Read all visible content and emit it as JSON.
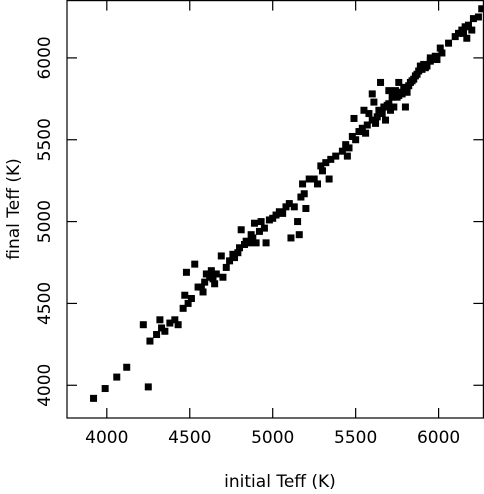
{
  "chart_data": {
    "type": "scatter",
    "x_label": "initial Teff (K)",
    "y_label": "final Teff (K)",
    "xlim": [
      3760,
      6270
    ],
    "ylim": [
      3800,
      6350
    ],
    "xticks": [
      4000,
      4500,
      5000,
      5500,
      6000
    ],
    "yticks": [
      4000,
      4500,
      5000,
      5500,
      6000
    ],
    "color": "#000000",
    "x": [
      3920,
      3990,
      4060,
      4120,
      4250,
      4220,
      4260,
      4300,
      4320,
      4330,
      4350,
      4380,
      4410,
      4430,
      4460,
      4470,
      4490,
      4510,
      4480,
      4530,
      4550,
      4570,
      4580,
      4590,
      4600,
      4620,
      4630,
      4640,
      4660,
      4650,
      4700,
      4690,
      4720,
      4740,
      4760,
      4770,
      4790,
      4800,
      4810,
      4830,
      4840,
      4860,
      4870,
      4880,
      4890,
      4900,
      4920,
      4930,
      4950,
      4960,
      4980,
      5000,
      5020,
      5040,
      5060,
      5080,
      5100,
      5110,
      5130,
      5150,
      5160,
      5170,
      5180,
      5190,
      5200,
      5220,
      5250,
      5270,
      5290,
      5300,
      5320,
      5340,
      5350,
      5380,
      5420,
      5440,
      5460,
      5480,
      5490,
      5500,
      5520,
      5540,
      5560,
      5570,
      5580,
      5600,
      5610,
      5620,
      5630,
      5640,
      5660,
      5670,
      5680,
      5690,
      5700,
      5710,
      5720,
      5730,
      5740,
      5750,
      5760,
      5770,
      5780,
      5790,
      5800,
      5810,
      5820,
      5830,
      5840,
      5850,
      5860,
      5870,
      5880,
      5890,
      5900,
      5910,
      5920,
      5930,
      5950,
      5980,
      6020,
      6060,
      6100,
      6120,
      6140,
      6160,
      6180,
      6210,
      6240,
      6260,
      6150,
      6170,
      6200,
      6010,
      5760,
      5800,
      5700,
      5600,
      5550,
      5450,
      5650,
      5990,
      5950
    ],
    "y": [
      3920,
      3980,
      4050,
      4110,
      3990,
      4370,
      4270,
      4310,
      4400,
      4350,
      4330,
      4380,
      4400,
      4370,
      4470,
      4550,
      4500,
      4530,
      4690,
      4740,
      4600,
      4600,
      4570,
      4630,
      4680,
      4660,
      4700,
      4650,
      4680,
      4620,
      4660,
      4790,
      4720,
      4760,
      4800,
      4780,
      4810,
      4840,
      4950,
      4860,
      4880,
      4870,
      4920,
      4900,
      4990,
      4870,
      4940,
      5000,
      4960,
      4870,
      5010,
      5020,
      5040,
      5060,
      5050,
      5090,
      5110,
      4900,
      5090,
      5000,
      4920,
      5150,
      5230,
      5170,
      5080,
      5260,
      5260,
      5230,
      5340,
      5310,
      5360,
      5260,
      5380,
      5400,
      5430,
      5470,
      5450,
      5520,
      5630,
      5500,
      5550,
      5570,
      5540,
      5590,
      5660,
      5620,
      5730,
      5600,
      5640,
      5680,
      5660,
      5700,
      5620,
      5710,
      5720,
      5680,
      5760,
      5700,
      5800,
      5760,
      5770,
      5790,
      5780,
      5810,
      5820,
      5790,
      5830,
      5850,
      5860,
      5870,
      5890,
      5900,
      5920,
      5950,
      5930,
      5960,
      5940,
      5950,
      5980,
      6010,
      6030,
      6090,
      6130,
      6150,
      6170,
      6190,
      6200,
      6240,
      6250,
      6300,
      6150,
      6120,
      6170,
      6060,
      5850,
      5700,
      5800,
      5780,
      5680,
      5400,
      5850,
      5990,
      6000
    ]
  }
}
